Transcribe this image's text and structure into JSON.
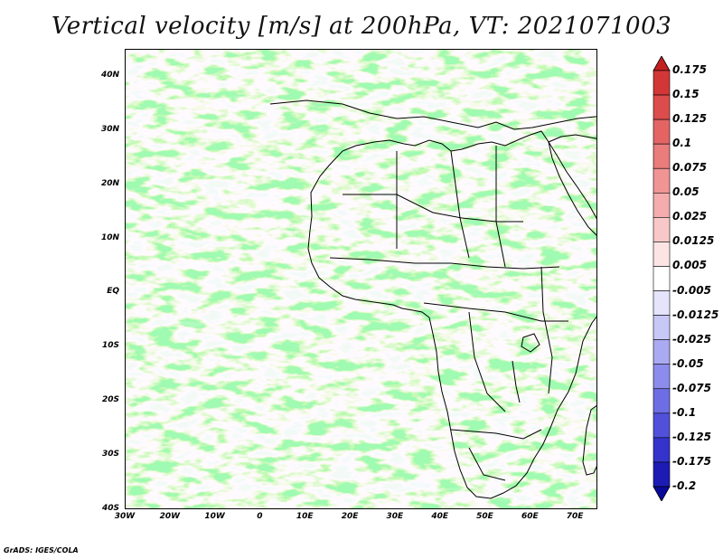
{
  "title": "Vertical velocity [m/s] at 200hPa, VT: 2021071003",
  "credit": "GrADS: IGES/COLA",
  "map": {
    "lat_labels": [
      "40N",
      "30N",
      "20N",
      "10N",
      "EQ",
      "10S",
      "20S",
      "30S",
      "40S"
    ],
    "lat_values": [
      40,
      30,
      20,
      10,
      0,
      -10,
      -20,
      -30,
      -40
    ],
    "lon_labels": [
      "30W",
      "20W",
      "10W",
      "0",
      "10E",
      "20E",
      "30E",
      "40E",
      "50E",
      "60E",
      "70E"
    ],
    "lon_values": [
      -30,
      -20,
      -10,
      0,
      10,
      20,
      30,
      40,
      50,
      60,
      70
    ],
    "lon_range": [
      -30,
      75
    ],
    "lat_range": [
      -40,
      45
    ]
  },
  "colorbar": {
    "labels": [
      "0.175",
      "0.15",
      "0.125",
      "0.1",
      "0.075",
      "0.05",
      "0.025",
      "0.0125",
      "0.005",
      "-0.005",
      "-0.0125",
      "-0.025",
      "-0.05",
      "-0.075",
      "-0.1",
      "-0.125",
      "-0.175",
      "-0.2"
    ],
    "colors": [
      "#c42020",
      "#d23636",
      "#dc4c4c",
      "#e46464",
      "#ea7c7c",
      "#f09494",
      "#f4acac",
      "#f8c8c8",
      "#fce4e4",
      "#ffffff",
      "#e4e4fb",
      "#c8c8f7",
      "#aaaaf2",
      "#8c8cec",
      "#6e6ee4",
      "#5050da",
      "#3434cc",
      "#1c1cb4",
      "#0a0a9a"
    ]
  }
}
